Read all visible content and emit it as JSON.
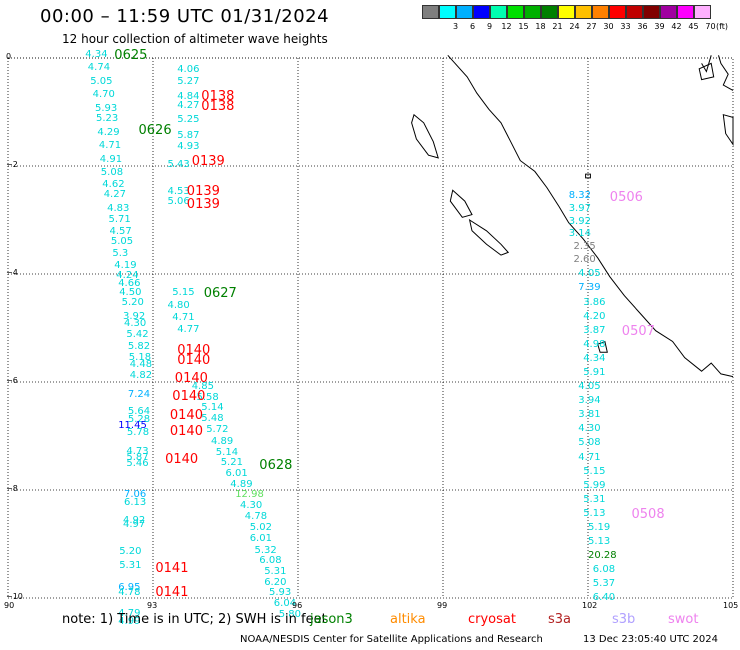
{
  "header": {
    "title": "00:00 – 11:59 UTC 01/31/2024",
    "subtitle": "12 hour collection of altimeter wave heights"
  },
  "legend": {
    "unit": "(ft)",
    "levels": [
      {
        "label": "",
        "color": "#7f7f7f"
      },
      {
        "label": "3",
        "color": "#00ffff"
      },
      {
        "label": "6",
        "color": "#00b0ff"
      },
      {
        "label": "9",
        "color": "#0000ff"
      },
      {
        "label": "12",
        "color": "#00ffb0"
      },
      {
        "label": "15",
        "color": "#00e000"
      },
      {
        "label": "18",
        "color": "#00b000"
      },
      {
        "label": "21",
        "color": "#008000"
      },
      {
        "label": "24",
        "color": "#ffff00"
      },
      {
        "label": "27",
        "color": "#ffc000"
      },
      {
        "label": "30",
        "color": "#ff8000"
      },
      {
        "label": "33",
        "color": "#ff0000"
      },
      {
        "label": "36",
        "color": "#c00000"
      },
      {
        "label": "39",
        "color": "#800000"
      },
      {
        "label": "42",
        "color": "#a000a0"
      },
      {
        "label": "45",
        "color": "#ff00ff"
      },
      {
        "label": "70",
        "color": "#ffb0ff"
      }
    ]
  },
  "map": {
    "x_ticks": [
      "90",
      "93",
      "96",
      "99",
      "102",
      "105"
    ],
    "y_ticks": [
      "0",
      "−2",
      "−4",
      "−6",
      "−8",
      "−10"
    ],
    "coast_color": "#000000",
    "grid_color": "#000000"
  },
  "observations": {
    "track_a": [
      {
        "v": "4.34",
        "lon": 91.6,
        "lat": 0.06,
        "c": "#00d8d8"
      },
      {
        "v": "4.74",
        "lon": 91.65,
        "lat": -0.19,
        "c": "#00d8d8"
      },
      {
        "v": "5.05",
        "lon": 91.7,
        "lat": -0.44,
        "c": "#00d8d8"
      },
      {
        "v": "4.70",
        "lon": 91.75,
        "lat": -0.69,
        "c": "#00d8d8"
      },
      {
        "v": "5.93",
        "lon": 91.8,
        "lat": -0.94,
        "c": "#00d8d8"
      },
      {
        "v": "5.23",
        "lon": 91.82,
        "lat": -1.13,
        "c": "#00d8d8"
      },
      {
        "v": "4.29",
        "lon": 91.85,
        "lat": -1.38,
        "c": "#00d8d8"
      },
      {
        "v": "4.71",
        "lon": 91.88,
        "lat": -1.63,
        "c": "#00d8d8"
      },
      {
        "v": "4.91",
        "lon": 91.9,
        "lat": -1.88,
        "c": "#00d8d8"
      },
      {
        "v": "5.08",
        "lon": 91.92,
        "lat": -2.13,
        "c": "#00d8d8"
      },
      {
        "v": "4.62",
        "lon": 91.95,
        "lat": -2.35,
        "c": "#00d8d8"
      },
      {
        "v": "4.27",
        "lon": 91.98,
        "lat": -2.54,
        "c": "#00d8d8"
      },
      {
        "v": "4.83",
        "lon": 92.05,
        "lat": -2.79,
        "c": "#00d8d8"
      },
      {
        "v": "5.71",
        "lon": 92.08,
        "lat": -2.99,
        "c": "#00d8d8"
      },
      {
        "v": "4.57",
        "lon": 92.1,
        "lat": -3.22,
        "c": "#00d8d8"
      },
      {
        "v": "5.05",
        "lon": 92.13,
        "lat": -3.41,
        "c": "#00d8d8"
      },
      {
        "v": "5.3",
        "lon": 92.16,
        "lat": -3.62,
        "c": "#00d8d8"
      },
      {
        "v": "4.19",
        "lon": 92.2,
        "lat": -3.86,
        "c": "#00d8d8"
      },
      {
        "v": "4.24",
        "lon": 92.24,
        "lat": -4.03,
        "c": "#00d8d8"
      },
      {
        "v": "4.66",
        "lon": 92.28,
        "lat": -4.19,
        "c": "#00d8d8"
      },
      {
        "v": "4.50",
        "lon": 92.3,
        "lat": -4.35,
        "c": "#00d8d8"
      },
      {
        "v": "5.20",
        "lon": 92.35,
        "lat": -4.53,
        "c": "#00d8d8"
      },
      {
        "v": "3.92",
        "lon": 92.38,
        "lat": -4.79,
        "c": "#00d8d8"
      },
      {
        "v": "4.30",
        "lon": 92.4,
        "lat": -4.93,
        "c": "#00d8d8"
      },
      {
        "v": "5.42",
        "lon": 92.45,
        "lat": -5.13,
        "c": "#00d8d8"
      },
      {
        "v": "5.82",
        "lon": 92.48,
        "lat": -5.35,
        "c": "#00d8d8"
      },
      {
        "v": "5.18",
        "lon": 92.5,
        "lat": -5.55,
        "c": "#00d8d8"
      },
      {
        "v": "4.48",
        "lon": 92.52,
        "lat": -5.68,
        "c": "#00d8d8"
      },
      {
        "v": "4.82",
        "lon": 92.52,
        "lat": -5.88,
        "c": "#00d8d8"
      },
      {
        "v": "7.24",
        "lon": 92.48,
        "lat": -6.24,
        "c": "#00b0ff"
      },
      {
        "v": "5.64",
        "lon": 92.48,
        "lat": -6.55,
        "c": "#00d8d8"
      },
      {
        "v": "5.28",
        "lon": 92.48,
        "lat": -6.7,
        "c": "#00d8d8"
      },
      {
        "v": "11.45",
        "lon": 92.28,
        "lat": -6.82,
        "c": "#0000ff"
      },
      {
        "v": "5.78",
        "lon": 92.46,
        "lat": -6.94,
        "c": "#00d8d8"
      },
      {
        "v": "4.73",
        "lon": 92.45,
        "lat": -7.3,
        "c": "#00d8d8"
      },
      {
        "v": "5.87",
        "lon": 92.45,
        "lat": -7.41,
        "c": "#00d8d8"
      },
      {
        "v": "5.46",
        "lon": 92.45,
        "lat": -7.52,
        "c": "#00d8d8"
      },
      {
        "v": "7.06",
        "lon": 92.4,
        "lat": -8.09,
        "c": "#00b0ff"
      },
      {
        "v": "6.13",
        "lon": 92.4,
        "lat": -8.24,
        "c": "#00d8d8"
      },
      {
        "v": "4.92",
        "lon": 92.38,
        "lat": -8.57,
        "c": "#00d8d8"
      },
      {
        "v": "4.97",
        "lon": 92.38,
        "lat": -8.64,
        "c": "#00d8d8"
      },
      {
        "v": "5.20",
        "lon": 92.3,
        "lat": -9.14,
        "c": "#00d8d8"
      },
      {
        "v": "5.31",
        "lon": 92.3,
        "lat": -9.41,
        "c": "#00d8d8"
      },
      {
        "v": "6.95",
        "lon": 92.28,
        "lat": -9.81,
        "c": "#00b0ff"
      },
      {
        "v": "4.78",
        "lon": 92.28,
        "lat": -9.9,
        "c": "#00d8d8"
      },
      {
        "v": "4.79",
        "lon": 92.28,
        "lat": -10.29,
        "c": "#00d8d8"
      },
      {
        "v": "4.99",
        "lon": 92.28,
        "lat": -10.44,
        "c": "#00d8d8"
      }
    ],
    "track_b": [
      {
        "v": "4.06",
        "lon": 93.5,
        "lat": -0.22,
        "c": "#00d8d8"
      },
      {
        "v": "5.27",
        "lon": 93.5,
        "lat": -0.44,
        "c": "#00d8d8"
      },
      {
        "v": "4.84",
        "lon": 93.5,
        "lat": -0.72,
        "c": "#00d8d8"
      },
      {
        "v": "4.27",
        "lon": 93.5,
        "lat": -0.89,
        "c": "#00d8d8"
      },
      {
        "v": "5.25",
        "lon": 93.5,
        "lat": -1.14,
        "c": "#00d8d8"
      },
      {
        "v": "5.87",
        "lon": 93.5,
        "lat": -1.44,
        "c": "#00d8d8"
      },
      {
        "v": "4.93",
        "lon": 93.5,
        "lat": -1.64,
        "c": "#00d8d8"
      },
      {
        "v": "5.43",
        "lon": 93.3,
        "lat": -1.98,
        "c": "#00d8d8"
      },
      {
        "v": "4.53",
        "lon": 93.3,
        "lat": -2.48,
        "c": "#00d8d8"
      },
      {
        "v": "5.06",
        "lon": 93.3,
        "lat": -2.67,
        "c": "#00d8d8"
      },
      {
        "v": "5.15",
        "lon": 93.4,
        "lat": -4.35,
        "c": "#00d8d8"
      },
      {
        "v": "4.80",
        "lon": 93.3,
        "lat": -4.6,
        "c": "#00d8d8"
      },
      {
        "v": "4.71",
        "lon": 93.4,
        "lat": -4.81,
        "c": "#00d8d8"
      },
      {
        "v": "4.77",
        "lon": 93.5,
        "lat": -5.04,
        "c": "#00d8d8"
      },
      {
        "v": "4.85",
        "lon": 93.8,
        "lat": -6.1,
        "c": "#00d8d8"
      },
      {
        "v": "5.58",
        "lon": 93.9,
        "lat": -6.29,
        "c": "#00d8d8"
      },
      {
        "v": "5.14",
        "lon": 94.0,
        "lat": -6.48,
        "c": "#00d8d8"
      },
      {
        "v": "5.48",
        "lon": 94.0,
        "lat": -6.68,
        "c": "#00d8d8"
      },
      {
        "v": "5.72",
        "lon": 94.1,
        "lat": -6.89,
        "c": "#00d8d8"
      },
      {
        "v": "4.89",
        "lon": 94.2,
        "lat": -7.11,
        "c": "#00d8d8"
      },
      {
        "v": "5.14",
        "lon": 94.3,
        "lat": -7.31,
        "c": "#00d8d8"
      },
      {
        "v": "5.21",
        "lon": 94.4,
        "lat": -7.5,
        "c": "#00d8d8"
      },
      {
        "v": "6.01",
        "lon": 94.5,
        "lat": -7.7,
        "c": "#00d8d8"
      },
      {
        "v": "4.89",
        "lon": 94.6,
        "lat": -7.9,
        "c": "#00d8d8"
      },
      {
        "v": "12.98",
        "lon": 94.7,
        "lat": -8.1,
        "c": "#60e060"
      },
      {
        "v": "4.30",
        "lon": 94.8,
        "lat": -8.3,
        "c": "#00d8d8"
      },
      {
        "v": "4.78",
        "lon": 94.9,
        "lat": -8.5,
        "c": "#00d8d8"
      },
      {
        "v": "5.02",
        "lon": 95.0,
        "lat": -8.7,
        "c": "#00d8d8"
      },
      {
        "v": "6.01",
        "lon": 95.0,
        "lat": -8.9,
        "c": "#00d8d8"
      },
      {
        "v": "5.32",
        "lon": 95.1,
        "lat": -9.12,
        "c": "#00d8d8"
      },
      {
        "v": "6.08",
        "lon": 95.2,
        "lat": -9.31,
        "c": "#00d8d8"
      },
      {
        "v": "5.31",
        "lon": 95.3,
        "lat": -9.51,
        "c": "#00d8d8"
      },
      {
        "v": "6.20",
        "lon": 95.3,
        "lat": -9.72,
        "c": "#00d8d8"
      },
      {
        "v": "5.93",
        "lon": 95.4,
        "lat": -9.91,
        "c": "#00d8d8"
      },
      {
        "v": "6.04",
        "lon": 95.5,
        "lat": -10.11,
        "c": "#00d8d8"
      },
      {
        "v": "5.80",
        "lon": 95.6,
        "lat": -10.31,
        "c": "#00d8d8"
      }
    ],
    "track_c": [
      {
        "v": "8.32",
        "lon": 101.6,
        "lat": -2.56,
        "c": "#00b0ff"
      },
      {
        "v": "3.97",
        "lon": 101.6,
        "lat": -2.79,
        "c": "#00d8d8"
      },
      {
        "v": "3.92",
        "lon": 101.6,
        "lat": -3.03,
        "c": "#00d8d8"
      },
      {
        "v": "3.14",
        "lon": 101.6,
        "lat": -3.25,
        "c": "#00d8d8"
      },
      {
        "v": "2.35",
        "lon": 101.7,
        "lat": -3.49,
        "c": "#808080"
      },
      {
        "v": "2.60",
        "lon": 101.7,
        "lat": -3.74,
        "c": "#808080"
      },
      {
        "v": "4.05",
        "lon": 101.8,
        "lat": -4.0,
        "c": "#00d8d8"
      },
      {
        "v": "7.39",
        "lon": 101.8,
        "lat": -4.26,
        "c": "#00b0ff"
      },
      {
        "v": "3.86",
        "lon": 101.9,
        "lat": -4.53,
        "c": "#00d8d8"
      },
      {
        "v": "4.20",
        "lon": 101.9,
        "lat": -4.79,
        "c": "#00d8d8"
      },
      {
        "v": "3.87",
        "lon": 101.9,
        "lat": -5.05,
        "c": "#00d8d8"
      },
      {
        "v": "4.98",
        "lon": 101.9,
        "lat": -5.31,
        "c": "#00d8d8"
      },
      {
        "v": "4.34",
        "lon": 101.9,
        "lat": -5.57,
        "c": "#00d8d8"
      },
      {
        "v": "5.91",
        "lon": 101.9,
        "lat": -5.83,
        "c": "#00d8d8"
      },
      {
        "v": "4.05",
        "lon": 101.8,
        "lat": -6.09,
        "c": "#00d8d8"
      },
      {
        "v": "3.94",
        "lon": 101.8,
        "lat": -6.35,
        "c": "#00d8d8"
      },
      {
        "v": "3.81",
        "lon": 101.8,
        "lat": -6.61,
        "c": "#00d8d8"
      },
      {
        "v": "4.30",
        "lon": 101.8,
        "lat": -6.87,
        "c": "#00d8d8"
      },
      {
        "v": "5.08",
        "lon": 101.8,
        "lat": -7.13,
        "c": "#00d8d8"
      },
      {
        "v": "4.71",
        "lon": 101.8,
        "lat": -7.4,
        "c": "#00d8d8"
      },
      {
        "v": "5.15",
        "lon": 101.9,
        "lat": -7.66,
        "c": "#00d8d8"
      },
      {
        "v": "5.99",
        "lon": 101.9,
        "lat": -7.92,
        "c": "#00d8d8"
      },
      {
        "v": "5.31",
        "lon": 101.9,
        "lat": -8.18,
        "c": "#00d8d8"
      },
      {
        "v": "5.13",
        "lon": 101.9,
        "lat": -8.44,
        "c": "#00d8d8"
      },
      {
        "v": "5.19",
        "lon": 102.0,
        "lat": -8.7,
        "c": "#00d8d8"
      },
      {
        "v": "5.13",
        "lon": 102.0,
        "lat": -8.96,
        "c": "#00d8d8"
      },
      {
        "v": "20.28",
        "lon": 102.0,
        "lat": -9.22,
        "c": "#008000"
      },
      {
        "v": "6.08",
        "lon": 102.1,
        "lat": -9.48,
        "c": "#00d8d8"
      },
      {
        "v": "5.37",
        "lon": 102.1,
        "lat": -9.74,
        "c": "#00d8d8"
      },
      {
        "v": "6.40",
        "lon": 102.1,
        "lat": -10.0,
        "c": "#00d8d8"
      }
    ],
    "labels": [
      {
        "v": "0625",
        "lon": 92.2,
        "lat": 0.05,
        "c": "#008000"
      },
      {
        "v": "0626",
        "lon": 92.7,
        "lat": -1.35,
        "c": "#008000"
      },
      {
        "v": "0627",
        "lon": 94.05,
        "lat": -4.36,
        "c": "#008000"
      },
      {
        "v": "0628",
        "lon": 95.2,
        "lat": -7.56,
        "c": "#008000"
      },
      {
        "v": "0138",
        "lon": 94.0,
        "lat": -0.72,
        "c": "#ff0000"
      },
      {
        "v": "0138",
        "lon": 94.0,
        "lat": -0.9,
        "c": "#ff0000"
      },
      {
        "v": "0139",
        "lon": 93.8,
        "lat": -1.93,
        "c": "#ff0000"
      },
      {
        "v": "0139",
        "lon": 93.7,
        "lat": -2.48,
        "c": "#ff0000"
      },
      {
        "v": "0139",
        "lon": 93.7,
        "lat": -2.72,
        "c": "#ff0000"
      },
      {
        "v": "0140",
        "lon": 93.5,
        "lat": -5.43,
        "c": "#ff0000"
      },
      {
        "v": "0140",
        "lon": 93.5,
        "lat": -5.6,
        "c": "#ff0000"
      },
      {
        "v": "0140",
        "lon": 93.45,
        "lat": -5.94,
        "c": "#ff0000"
      },
      {
        "v": "0140",
        "lon": 93.4,
        "lat": -6.28,
        "c": "#ff0000"
      },
      {
        "v": "0140",
        "lon": 93.35,
        "lat": -6.63,
        "c": "#ff0000"
      },
      {
        "v": "0140",
        "lon": 93.35,
        "lat": -6.92,
        "c": "#ff0000"
      },
      {
        "v": "0140",
        "lon": 93.25,
        "lat": -7.44,
        "c": "#ff0000"
      },
      {
        "v": "0141",
        "lon": 93.05,
        "lat": -9.46,
        "c": "#ff0000"
      },
      {
        "v": "0141",
        "lon": 93.05,
        "lat": -9.9,
        "c": "#ff0000"
      },
      {
        "v": "0506",
        "lon": 102.45,
        "lat": -2.58,
        "c": "#ee82ee"
      },
      {
        "v": "0507",
        "lon": 102.7,
        "lat": -5.07,
        "c": "#ee82ee"
      },
      {
        "v": "0508",
        "lon": 102.9,
        "lat": -8.46,
        "c": "#ee82ee"
      }
    ]
  },
  "footer": {
    "note": "note: 1) Time is in UTC; 2) SWH is in feet",
    "satellites": [
      {
        "name": "jason3",
        "color": "#008000"
      },
      {
        "name": "altika",
        "color": "#ff8c00"
      },
      {
        "name": "cryosat",
        "color": "#ff0000"
      },
      {
        "name": "s3a",
        "color": "#b22222"
      },
      {
        "name": "s3b",
        "color": "#b0a0ff"
      },
      {
        "name": "swot",
        "color": "#ee82ee"
      }
    ],
    "credit": "NOAA/NESDIS Center for Satellite Applications and Research",
    "timestamp": "13 Dec 23:05:40 UTC 2024"
  }
}
